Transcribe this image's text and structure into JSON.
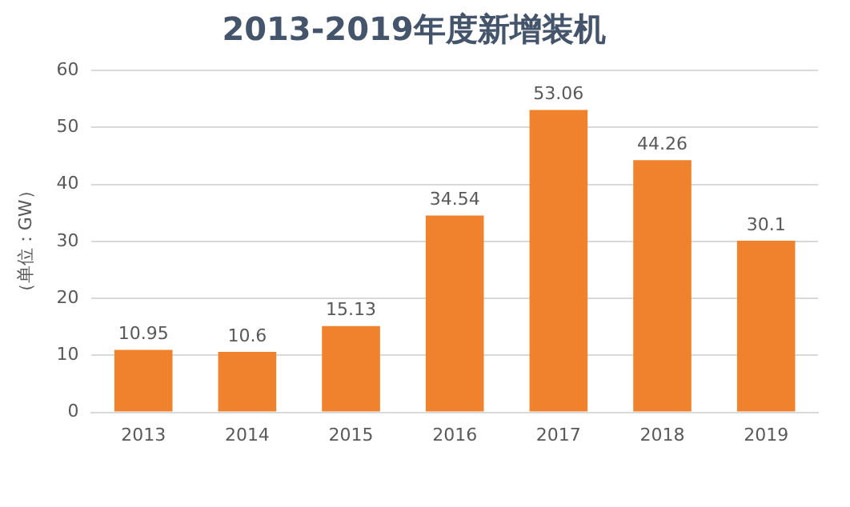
{
  "chart_data": {
    "type": "bar",
    "title": "2013-2019年度新增装机",
    "ylabel": "（单位：GW）",
    "categories": [
      "2013",
      "2014",
      "2015",
      "2016",
      "2017",
      "2018",
      "2019"
    ],
    "values": [
      10.95,
      10.6,
      15.13,
      34.54,
      53.06,
      44.26,
      30.1
    ],
    "color": "#f0822e",
    "ylim": [
      0,
      60
    ],
    "yticks": [
      0,
      10,
      20,
      30,
      40,
      50,
      60
    ],
    "grid": "y",
    "data_labels": true
  }
}
